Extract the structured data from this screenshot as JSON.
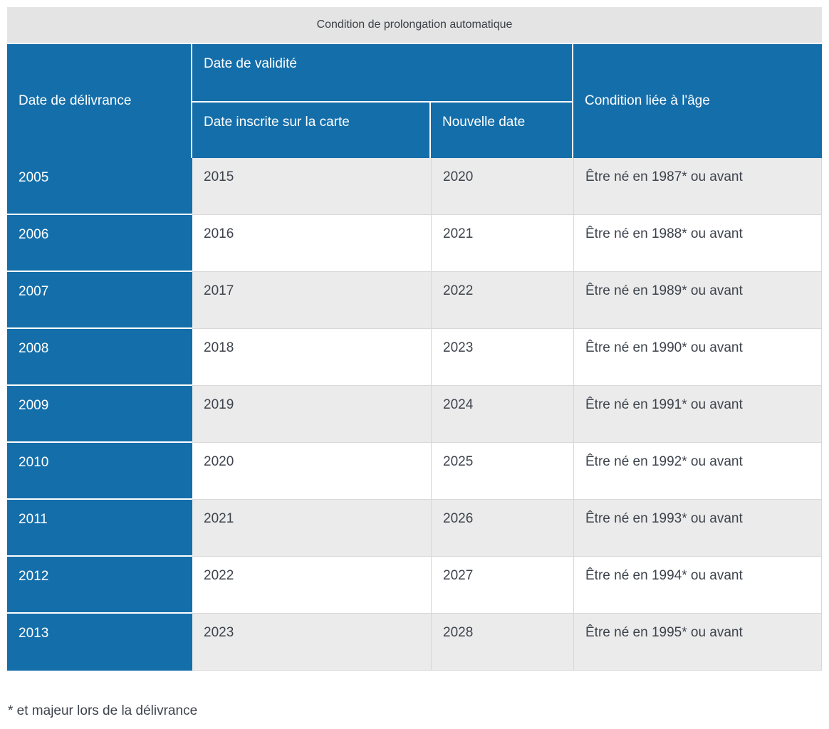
{
  "table": {
    "caption": "Condition de prolongation automatique",
    "header": {
      "delivrance": "Date de délivrance",
      "validite_group": "Date de validité",
      "inscrite": "Date inscrite sur la carte",
      "nouvelle": "Nouvelle date",
      "age": "Condition liée à l'âge"
    },
    "rows": [
      {
        "delivrance": "2005",
        "inscrite": "2015",
        "nouvelle": "2020",
        "condition": "Être né en 1987* ou avant"
      },
      {
        "delivrance": "2006",
        "inscrite": "2016",
        "nouvelle": "2021",
        "condition": "Être né en 1988* ou avant"
      },
      {
        "delivrance": "2007",
        "inscrite": "2017",
        "nouvelle": "2022",
        "condition": "Être né en 1989* ou avant"
      },
      {
        "delivrance": "2008",
        "inscrite": "2018",
        "nouvelle": "2023",
        "condition": "Être né en 1990* ou avant"
      },
      {
        "delivrance": "2009",
        "inscrite": "2019",
        "nouvelle": "2024",
        "condition": "Être né en 1991* ou avant"
      },
      {
        "delivrance": "2010",
        "inscrite": "2020",
        "nouvelle": "2025",
        "condition": "Être né en 1992* ou avant"
      },
      {
        "delivrance": "2011",
        "inscrite": "2021",
        "nouvelle": "2026",
        "condition": "Être né en 1993* ou avant"
      },
      {
        "delivrance": "2012",
        "inscrite": "2022",
        "nouvelle": "2027",
        "condition": "Être né en 1994* ou avant"
      },
      {
        "delivrance": "2013",
        "inscrite": "2023",
        "nouvelle": "2028",
        "condition": "Être né en 1995* ou avant"
      }
    ],
    "footnote": "* et majeur lors de la délivrance"
  },
  "colors": {
    "header_blue": "#146EAA",
    "stripe_gray": "#EBEBEB",
    "stripe_white": "#FFFFFF",
    "caption_gray": "#E4E4E4",
    "divider_gray": "#D8D8D8",
    "text_dark": "#3D434C",
    "header_text": "#FFFFFF"
  }
}
